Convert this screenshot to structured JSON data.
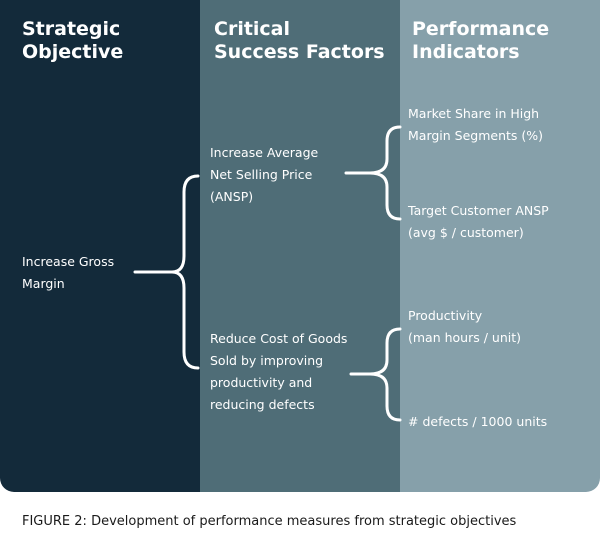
{
  "colors": {
    "col1": "#132a3a",
    "col2": "#4f6d77",
    "col3": "#86a0aa",
    "bracket": "#ffffff"
  },
  "headers": {
    "col1": "Strategic\nObjective",
    "col2": "Critical\nSuccess Factors",
    "col3": "Performance\nIndicators"
  },
  "objective": "Increase Gross\nMargin",
  "success_factors": [
    "Increase Average\nNet Selling Price\n(ANSP)",
    "Reduce Cost of Goods\nSold by improving\nproductivity and\nreducing defects"
  ],
  "indicators": [
    "Market Share in High\nMargin Segments (%)",
    "Target Customer ANSP\n(avg $ / customer)",
    "Productivity\n(man hours / unit)",
    "# defects / 1000 units"
  ],
  "caption": "FIGURE 2: Development of performance measures from strategic objectives"
}
